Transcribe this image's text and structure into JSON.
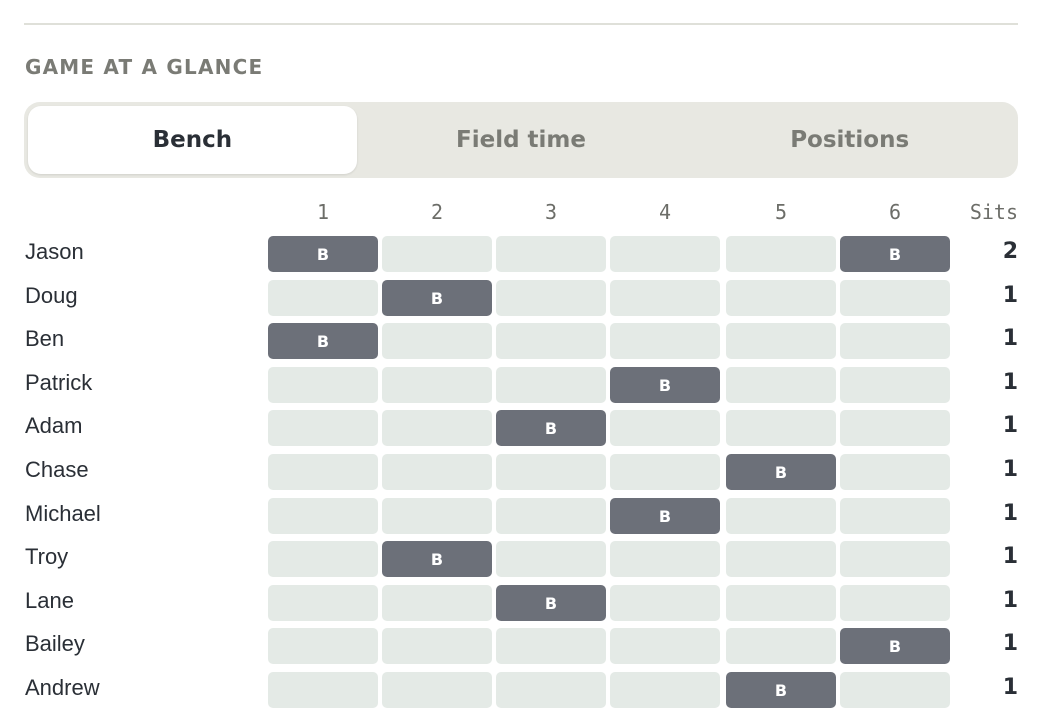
{
  "section": {
    "title": "GAME AT A GLANCE"
  },
  "tabs": [
    {
      "label": "Bench",
      "active": true
    },
    {
      "label": "Field time",
      "active": false
    },
    {
      "label": "Positions",
      "active": false
    }
  ],
  "grid": {
    "period_headers": [
      "1",
      "2",
      "3",
      "4",
      "5",
      "6"
    ],
    "sits_header": "Sits",
    "bench_marker": "B",
    "colors": {
      "bench": "#6c7079",
      "empty": "#e4eae6"
    },
    "players": [
      {
        "name": "Jason",
        "bench": [
          1,
          6
        ],
        "sits": "2"
      },
      {
        "name": "Doug",
        "bench": [
          2
        ],
        "sits": "1"
      },
      {
        "name": "Ben",
        "bench": [
          1
        ],
        "sits": "1"
      },
      {
        "name": "Patrick",
        "bench": [
          4
        ],
        "sits": "1"
      },
      {
        "name": "Adam",
        "bench": [
          3
        ],
        "sits": "1"
      },
      {
        "name": "Chase",
        "bench": [
          5
        ],
        "sits": "1"
      },
      {
        "name": "Michael",
        "bench": [
          4
        ],
        "sits": "1"
      },
      {
        "name": "Troy",
        "bench": [
          2
        ],
        "sits": "1"
      },
      {
        "name": "Lane",
        "bench": [
          3
        ],
        "sits": "1"
      },
      {
        "name": "Bailey",
        "bench": [
          6
        ],
        "sits": "1"
      },
      {
        "name": "Andrew",
        "bench": [
          5
        ],
        "sits": "1"
      }
    ]
  }
}
